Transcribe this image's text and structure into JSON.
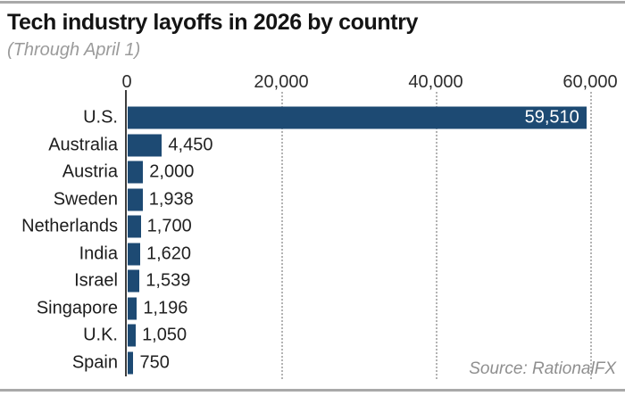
{
  "frame": {
    "top_rule_color": "#a9a9a9",
    "bottom_rule_color": "#a9a9a9"
  },
  "header": {
    "title": "Tech industry layoffs in 2026 by country",
    "subtitle": "(Through April 1)"
  },
  "source_note": "Source: RationalFX",
  "chart_data": {
    "type": "bar",
    "orientation": "horizontal",
    "title": "Tech industry layoffs in 2026 by country",
    "subtitle": "(Through April 1)",
    "categories": [
      "U.S.",
      "Australia",
      "Austria",
      "Sweden",
      "Netherlands",
      "India",
      "Israel",
      "Singapore",
      "U.K.",
      "Spain"
    ],
    "values": [
      59510,
      4450,
      2000,
      1938,
      1700,
      1620,
      1539,
      1196,
      1050,
      750
    ],
    "value_labels": [
      "59,510",
      "4,450",
      "2,000",
      "1,938",
      "1,700",
      "1,620",
      "1,539",
      "1,196",
      "1,050",
      "750"
    ],
    "xlim": [
      0,
      60000
    ],
    "x_ticks": [
      0,
      20000,
      40000,
      60000
    ],
    "x_tick_labels": [
      "0",
      "20,000",
      "40,000",
      "60,000"
    ],
    "gridlines_at": [
      20000,
      40000,
      60000
    ],
    "grid_style": "dotted-vertical",
    "legend": "none",
    "bar_color": "#1d4a73",
    "value_label_color": "#222222",
    "value_label_inside_color": "#ffffff",
    "first_bar_label_position": "inside-right",
    "other_bar_label_position": "outside-right",
    "source": "Source: RationalFX"
  }
}
